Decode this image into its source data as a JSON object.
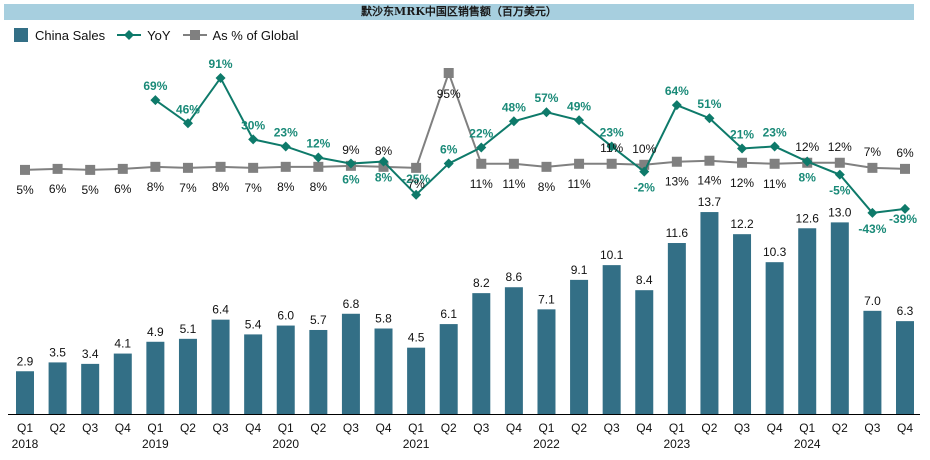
{
  "chart_data": {
    "type": "bar",
    "title": "默沙东MRK中国区销售额（百万美元）",
    "xlabel": "",
    "ylabel": "",
    "legend_position": "top-left",
    "grid": false,
    "categories": [
      "Q1",
      "Q2",
      "Q3",
      "Q4",
      "Q1",
      "Q2",
      "Q3",
      "Q4",
      "Q1",
      "Q2",
      "Q3",
      "Q4",
      "Q1",
      "Q2",
      "Q3",
      "Q4",
      "Q1",
      "Q2",
      "Q3",
      "Q4",
      "Q1",
      "Q2",
      "Q3",
      "Q4",
      "Q1",
      "Q2",
      "Q3",
      "Q4"
    ],
    "year_labels": [
      "2018",
      "",
      "",
      "",
      "2019",
      "",
      "",
      "",
      "2020",
      "",
      "",
      "",
      "2021",
      "",
      "",
      "",
      "2022",
      "",
      "",
      "",
      "2023",
      "",
      "",
      "",
      "2024",
      "",
      "",
      ""
    ],
    "series": [
      {
        "name": "China Sales",
        "type": "bar",
        "color": "#336f86",
        "values": [
          2.9,
          3.5,
          3.4,
          4.1,
          4.9,
          5.1,
          6.4,
          5.4,
          6.0,
          5.7,
          6.8,
          5.8,
          4.5,
          6.1,
          8.2,
          8.6,
          7.1,
          9.1,
          10.1,
          8.4,
          11.6,
          13.7,
          12.2,
          10.3,
          12.6,
          13.0,
          7.0,
          6.3
        ],
        "labels": [
          "2.9",
          "3.5",
          "3.4",
          "4.1",
          "4.9",
          "5.1",
          "6.4",
          "5.4",
          "6.0",
          "5.7",
          "6.8",
          "5.8",
          "4.5",
          "6.1",
          "8.2",
          "8.6",
          "7.1",
          "9.1",
          "10.1",
          "8.4",
          "11.6",
          "13.7",
          "12.2",
          "10.3",
          "12.6",
          "13.0",
          "7.0",
          "6.3"
        ]
      },
      {
        "name": "YoY",
        "type": "line",
        "marker": "diamond",
        "color": "#0e7a6a",
        "unit": "%",
        "values": [
          null,
          null,
          null,
          null,
          69,
          46,
          91,
          30,
          23,
          12,
          6,
          8,
          -25,
          6,
          22,
          48,
          57,
          49,
          23,
          -2,
          64,
          51,
          21,
          23,
          8,
          -5,
          -43,
          -39
        ]
      },
      {
        "name": "As % of Global",
        "type": "line",
        "marker": "square",
        "color": "#808080",
        "unit": "%",
        "values": [
          5,
          6,
          5,
          6,
          8,
          7,
          8,
          7,
          8,
          8,
          9,
          8,
          7,
          95,
          11,
          11,
          8,
          11,
          11,
          10,
          13,
          14,
          12,
          11,
          12,
          12,
          7,
          6
        ]
      }
    ],
    "ylim": [
      0,
      14
    ]
  }
}
